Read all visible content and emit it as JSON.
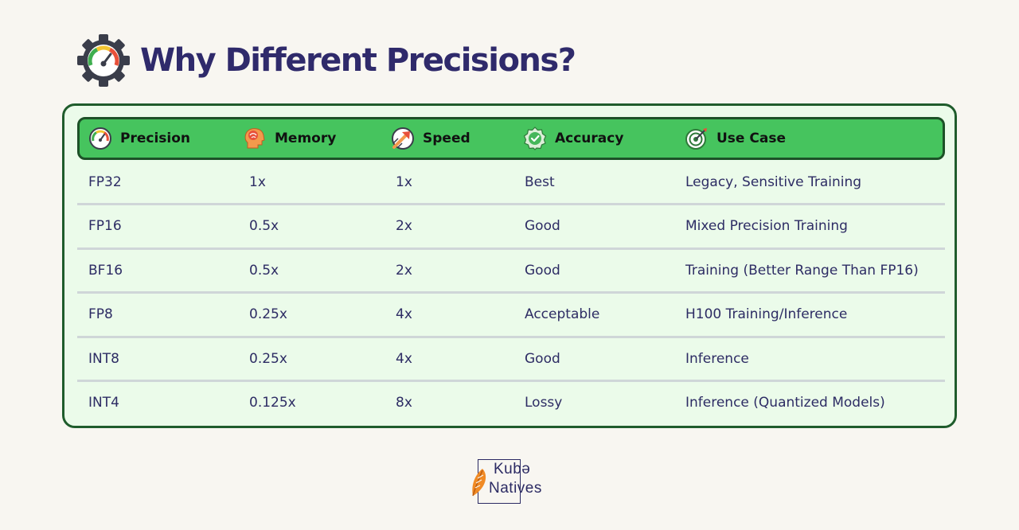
{
  "title": {
    "prefix": "Why Different ",
    "bold": "Precisions",
    "suffix": "?"
  },
  "table": {
    "columns": [
      {
        "label": "Precision",
        "icon": "gauge-icon"
      },
      {
        "label": "Memory",
        "icon": "brain-head-icon"
      },
      {
        "label": "Speed",
        "icon": "speed-arrow-icon"
      },
      {
        "label": "Accuracy",
        "icon": "check-badge-icon"
      },
      {
        "label": "Use Case",
        "icon": "target-icon"
      }
    ],
    "rows": [
      [
        "FP32",
        "1x",
        "1x",
        "Best",
        "Legacy, Sensitive Training"
      ],
      [
        "FP16",
        "0.5x",
        "2x",
        "Good",
        "Mixed Precision Training"
      ],
      [
        "BF16",
        "0.5x",
        "2x",
        "Good",
        "Training (Better Range Than FP16)"
      ],
      [
        "FP8",
        "0.25x",
        "4x",
        "Acceptable",
        "H100 Training/Inference"
      ],
      [
        "INT8",
        "0.25x",
        "4x",
        "Good",
        "Inference"
      ],
      [
        "INT4",
        "0.125x",
        "8x",
        "Lossy",
        "Inference (Quantized Models)"
      ]
    ]
  },
  "logo": {
    "line1": "Kubə",
    "line2": "Natives",
    "icon": "feather-icon"
  },
  "colors": {
    "background": "#f8f6f1",
    "card_background": "#ebfbea",
    "card_border": "#1f5c2c",
    "header_green": "#46c45e",
    "text": "#2d2c64"
  }
}
